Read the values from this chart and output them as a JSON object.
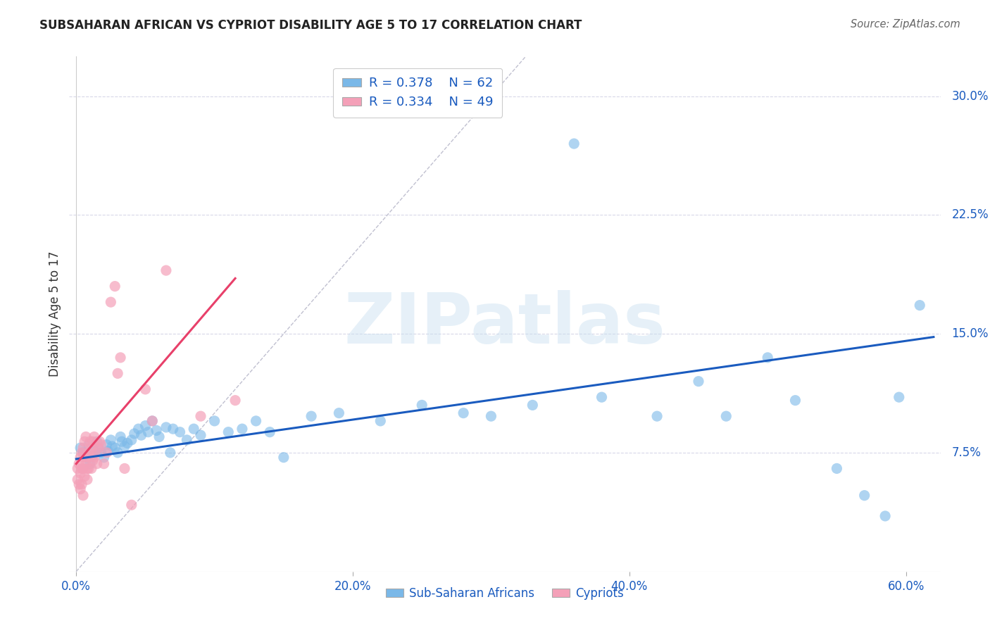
{
  "title": "SUBSAHARAN AFRICAN VS CYPRIOT DISABILITY AGE 5 TO 17 CORRELATION CHART",
  "source": "Source: ZipAtlas.com",
  "xlabel_ticks": [
    "0.0%",
    "20.0%",
    "40.0%",
    "60.0%"
  ],
  "xlabel_tick_vals": [
    0.0,
    0.2,
    0.4,
    0.6
  ],
  "ylabel": "Disability Age 5 to 17",
  "ylabel_ticks": [
    "7.5%",
    "15.0%",
    "22.5%",
    "30.0%"
  ],
  "ylabel_tick_vals": [
    0.075,
    0.15,
    0.225,
    0.3
  ],
  "xlim": [
    -0.005,
    0.625
  ],
  "ylim": [
    0.0,
    0.325
  ],
  "legend_r1": "R = 0.378",
  "legend_n1": "N = 62",
  "legend_r2": "R = 0.334",
  "legend_n2": "N = 49",
  "blue_color": "#7ab8e8",
  "pink_color": "#f4a0b8",
  "blue_line_color": "#1a5bbf",
  "pink_line_color": "#e8406a",
  "dashed_line_color": "#c0c0d0",
  "watermark": "ZIPatlas",
  "background_color": "#ffffff",
  "grid_color": "#d8d8e8",
  "blue_scatter_x": [
    0.003,
    0.005,
    0.007,
    0.009,
    0.01,
    0.012,
    0.013,
    0.015,
    0.016,
    0.018,
    0.02,
    0.022,
    0.023,
    0.025,
    0.026,
    0.028,
    0.03,
    0.032,
    0.033,
    0.035,
    0.037,
    0.04,
    0.042,
    0.045,
    0.047,
    0.05,
    0.052,
    0.055,
    0.058,
    0.06,
    0.065,
    0.068,
    0.07,
    0.075,
    0.08,
    0.085,
    0.09,
    0.1,
    0.11,
    0.12,
    0.13,
    0.14,
    0.15,
    0.17,
    0.19,
    0.22,
    0.25,
    0.28,
    0.3,
    0.33,
    0.36,
    0.38,
    0.42,
    0.45,
    0.47,
    0.5,
    0.52,
    0.55,
    0.57,
    0.585,
    0.595,
    0.61
  ],
  "blue_scatter_y": [
    0.078,
    0.075,
    0.072,
    0.08,
    0.068,
    0.073,
    0.076,
    0.082,
    0.078,
    0.075,
    0.072,
    0.08,
    0.076,
    0.083,
    0.079,
    0.078,
    0.075,
    0.085,
    0.082,
    0.079,
    0.081,
    0.083,
    0.087,
    0.09,
    0.086,
    0.092,
    0.088,
    0.095,
    0.089,
    0.085,
    0.091,
    0.075,
    0.09,
    0.088,
    0.083,
    0.09,
    0.086,
    0.095,
    0.088,
    0.09,
    0.095,
    0.088,
    0.072,
    0.098,
    0.1,
    0.095,
    0.105,
    0.1,
    0.098,
    0.105,
    0.27,
    0.11,
    0.098,
    0.12,
    0.098,
    0.135,
    0.108,
    0.065,
    0.048,
    0.035,
    0.11,
    0.168
  ],
  "pink_scatter_x": [
    0.001,
    0.001,
    0.002,
    0.002,
    0.003,
    0.003,
    0.003,
    0.004,
    0.004,
    0.004,
    0.005,
    0.005,
    0.005,
    0.006,
    0.006,
    0.006,
    0.007,
    0.007,
    0.008,
    0.008,
    0.008,
    0.009,
    0.009,
    0.01,
    0.01,
    0.011,
    0.011,
    0.012,
    0.012,
    0.013,
    0.013,
    0.014,
    0.015,
    0.016,
    0.017,
    0.018,
    0.02,
    0.022,
    0.025,
    0.028,
    0.03,
    0.032,
    0.035,
    0.04,
    0.05,
    0.055,
    0.065,
    0.09,
    0.115
  ],
  "pink_scatter_y": [
    0.065,
    0.058,
    0.068,
    0.055,
    0.072,
    0.062,
    0.052,
    0.075,
    0.065,
    0.055,
    0.078,
    0.065,
    0.048,
    0.082,
    0.072,
    0.06,
    0.085,
    0.068,
    0.065,
    0.072,
    0.058,
    0.075,
    0.065,
    0.082,
    0.072,
    0.078,
    0.065,
    0.082,
    0.07,
    0.085,
    0.072,
    0.075,
    0.068,
    0.078,
    0.082,
    0.08,
    0.068,
    0.075,
    0.17,
    0.18,
    0.125,
    0.135,
    0.065,
    0.042,
    0.115,
    0.095,
    0.19,
    0.098,
    0.108
  ],
  "blue_trendline_x": [
    0.0,
    0.62
  ],
  "blue_trendline_y": [
    0.071,
    0.148
  ],
  "pink_trendline_x": [
    0.0,
    0.115
  ],
  "pink_trendline_y": [
    0.068,
    0.185
  ]
}
